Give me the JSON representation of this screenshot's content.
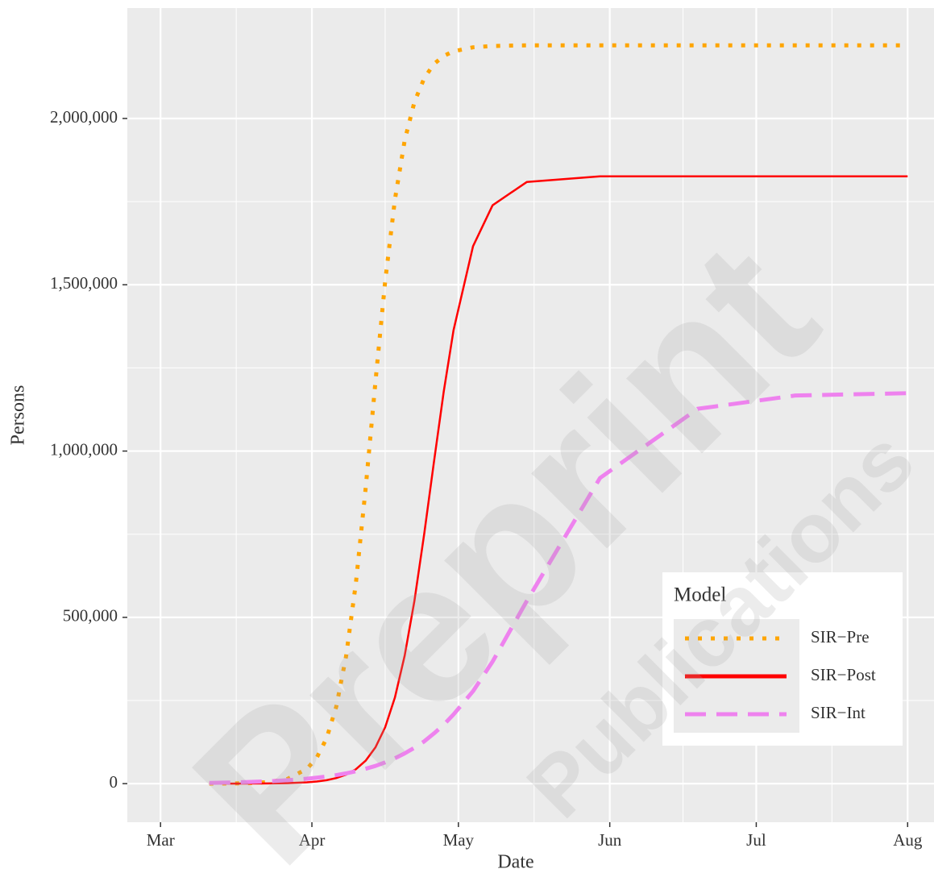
{
  "chart_data": {
    "type": "line",
    "x_label": "Date",
    "y_label": "Persons",
    "x": [
      10,
      14,
      18,
      22,
      26,
      30,
      32,
      34,
      36,
      38,
      40,
      42,
      44,
      46,
      48,
      50,
      52,
      54,
      56,
      58,
      60,
      64,
      68,
      75,
      90,
      110,
      130,
      153
    ],
    "series": [
      {
        "name": "SIR−Pre",
        "color": "#FFA500",
        "linetype": "dotted",
        "values": [
          137,
          439,
          1400,
          4460,
          14100,
          44500,
          78400,
          136000,
          232000,
          383000,
          602000,
          887000,
          1206000,
          1510000,
          1756000,
          1934000,
          2050000,
          2121000,
          2164000,
          2188000,
          2202000,
          2214000,
          2218000,
          2220000,
          2220000,
          2220000,
          2220000,
          2220000
        ]
      },
      {
        "name": "SIR−Post",
        "color": "#FF0000",
        "linetype": "solid",
        "values": [
          33,
          86,
          225,
          589,
          1535,
          4010,
          6480,
          10400,
          16800,
          27000,
          43200,
          68900,
          108700,
          169400,
          259000,
          385000,
          550000,
          751000,
          968000,
          1179000,
          1363000,
          1616000,
          1739000,
          1809000,
          1826000,
          1826000,
          1826000,
          1826000
        ]
      },
      {
        "name": "SIR−Int",
        "color": "#EE82EE",
        "linetype": "dashed",
        "values": [
          2285,
          3310,
          4800,
          7040,
          10200,
          14800,
          17900,
          21400,
          25700,
          30900,
          37200,
          44700,
          53200,
          63900,
          76300,
          90900,
          108000,
          127000,
          151000,
          177000,
          208000,
          278000,
          367000,
          549000,
          919000,
          1127000,
          1167000,
          1174000
        ]
      }
    ],
    "xlim": [
      -6.8,
      158.4
    ],
    "xticks": [
      {
        "value": 0,
        "label": "Mar"
      },
      {
        "value": 31,
        "label": "Apr"
      },
      {
        "value": 61,
        "label": "May"
      },
      {
        "value": 92,
        "label": "Jun"
      },
      {
        "value": 122,
        "label": "Jul"
      },
      {
        "value": 153,
        "label": "Aug"
      }
    ],
    "ylim": [
      -116000,
      2332000
    ],
    "yticks": [
      0,
      {
        "value": 500000,
        "label": "500,000"
      },
      {
        "value": 1000000,
        "label": "1,000,000"
      },
      {
        "value": 1500000,
        "label": "1,500,000"
      },
      {
        "value": 2000000,
        "label": "2,000,000"
      }
    ],
    "grid": true,
    "legend": {
      "title": "Model",
      "position": "bottom-right"
    },
    "watermark": [
      "Preprint",
      "Publications"
    ]
  }
}
